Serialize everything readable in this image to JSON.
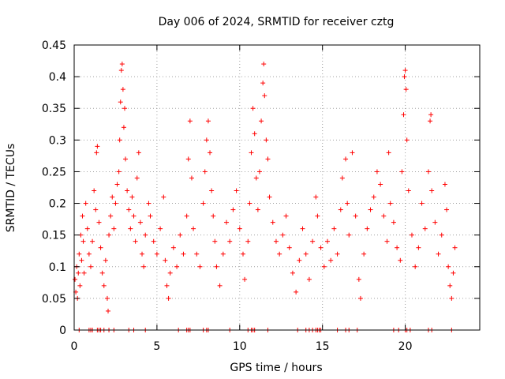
{
  "chart_data": {
    "type": "scatter",
    "title": "Day 006 of 2024, SRMTID for receiver cztg",
    "xlabel": "GPS time / hours",
    "ylabel": "SRMTID / TECUs",
    "xlim": [
      0,
      24.5
    ],
    "ylim": [
      0,
      0.45
    ],
    "x_ticks": [
      0,
      5,
      10,
      15,
      20
    ],
    "x_tick_labels": [
      "0",
      "5",
      "10",
      "15",
      "20"
    ],
    "y_ticks": [
      0,
      0.05,
      0.1,
      0.15,
      0.2,
      0.25,
      0.3,
      0.35,
      0.4,
      0.45
    ],
    "y_tick_labels": [
      "0",
      "0.05",
      "0.1",
      "0.15",
      "0.2",
      "0.25",
      "0.3",
      "0.35",
      "0.4",
      "0.45"
    ],
    "grid": true,
    "marker": "plus",
    "series_color": "#ff0000",
    "x_range_hours": [
      0,
      23
    ],
    "zero_value_hours": [
      0.3,
      0.9,
      1.0,
      1.1,
      1.4,
      1.5,
      1.6,
      1.8,
      2.1,
      2.4,
      3.3,
      3.6,
      4.3,
      6.3,
      6.8,
      6.9,
      7.0,
      7.8,
      8.0,
      8.1,
      9.4,
      10.5,
      10.7,
      10.8,
      10.9,
      11.7,
      13.5,
      14.0,
      14.2,
      14.4,
      14.6,
      14.7,
      14.8,
      14.9,
      15.9,
      16.4,
      16.6,
      17.1,
      19.3,
      19.6,
      20.0,
      20.1,
      20.3,
      21.4,
      21.6,
      22.8
    ],
    "points": [
      [
        0.05,
        0.08
      ],
      [
        0.1,
        0.06
      ],
      [
        0.15,
        0.1
      ],
      [
        0.2,
        0.05
      ],
      [
        0.25,
        0.09
      ],
      [
        0.3,
        0.12
      ],
      [
        0.35,
        0.07
      ],
      [
        0.4,
        0.15
      ],
      [
        0.45,
        0.11
      ],
      [
        0.5,
        0.18
      ],
      [
        0.55,
        0.14
      ],
      [
        0.6,
        0.09
      ],
      [
        0.7,
        0.2
      ],
      [
        0.8,
        0.16
      ],
      [
        0.9,
        0.12
      ],
      [
        1.0,
        0.1
      ],
      [
        1.1,
        0.14
      ],
      [
        1.2,
        0.22
      ],
      [
        1.3,
        0.19
      ],
      [
        1.35,
        0.28
      ],
      [
        1.4,
        0.29
      ],
      [
        1.5,
        0.17
      ],
      [
        1.6,
        0.13
      ],
      [
        1.7,
        0.09
      ],
      [
        1.8,
        0.07
      ],
      [
        1.9,
        0.11
      ],
      [
        2.0,
        0.05
      ],
      [
        2.05,
        0.03
      ],
      [
        2.1,
        0.15
      ],
      [
        2.2,
        0.18
      ],
      [
        2.3,
        0.21
      ],
      [
        2.4,
        0.16
      ],
      [
        2.5,
        0.2
      ],
      [
        2.6,
        0.23
      ],
      [
        2.7,
        0.25
      ],
      [
        2.75,
        0.3
      ],
      [
        2.8,
        0.36
      ],
      [
        2.85,
        0.41
      ],
      [
        2.9,
        0.42
      ],
      [
        2.95,
        0.38
      ],
      [
        3.0,
        0.32
      ],
      [
        3.05,
        0.35
      ],
      [
        3.1,
        0.27
      ],
      [
        3.2,
        0.22
      ],
      [
        3.3,
        0.19
      ],
      [
        3.4,
        0.16
      ],
      [
        3.5,
        0.21
      ],
      [
        3.6,
        0.18
      ],
      [
        3.7,
        0.14
      ],
      [
        3.8,
        0.24
      ],
      [
        3.9,
        0.28
      ],
      [
        4.0,
        0.17
      ],
      [
        4.1,
        0.12
      ],
      [
        4.2,
        0.1
      ],
      [
        4.3,
        0.15
      ],
      [
        4.5,
        0.2
      ],
      [
        4.6,
        0.18
      ],
      [
        4.8,
        0.14
      ],
      [
        5.0,
        0.12
      ],
      [
        5.2,
        0.16
      ],
      [
        5.4,
        0.21
      ],
      [
        5.5,
        0.11
      ],
      [
        5.6,
        0.07
      ],
      [
        5.7,
        0.05
      ],
      [
        5.8,
        0.09
      ],
      [
        6.0,
        0.13
      ],
      [
        6.2,
        0.1
      ],
      [
        6.4,
        0.15
      ],
      [
        6.6,
        0.12
      ],
      [
        6.8,
        0.18
      ],
      [
        6.9,
        0.27
      ],
      [
        7.0,
        0.33
      ],
      [
        7.1,
        0.24
      ],
      [
        7.2,
        0.16
      ],
      [
        7.4,
        0.12
      ],
      [
        7.6,
        0.1
      ],
      [
        7.8,
        0.2
      ],
      [
        7.9,
        0.25
      ],
      [
        8.0,
        0.3
      ],
      [
        8.1,
        0.33
      ],
      [
        8.2,
        0.28
      ],
      [
        8.3,
        0.22
      ],
      [
        8.4,
        0.18
      ],
      [
        8.5,
        0.14
      ],
      [
        8.6,
        0.1
      ],
      [
        8.8,
        0.07
      ],
      [
        9.0,
        0.12
      ],
      [
        9.2,
        0.17
      ],
      [
        9.4,
        0.14
      ],
      [
        9.6,
        0.19
      ],
      [
        9.8,
        0.22
      ],
      [
        10.0,
        0.16
      ],
      [
        10.2,
        0.12
      ],
      [
        10.3,
        0.08
      ],
      [
        10.5,
        0.14
      ],
      [
        10.6,
        0.2
      ],
      [
        10.7,
        0.28
      ],
      [
        10.8,
        0.35
      ],
      [
        10.9,
        0.31
      ],
      [
        11.0,
        0.24
      ],
      [
        11.1,
        0.19
      ],
      [
        11.2,
        0.25
      ],
      [
        11.3,
        0.33
      ],
      [
        11.4,
        0.39
      ],
      [
        11.45,
        0.42
      ],
      [
        11.5,
        0.37
      ],
      [
        11.6,
        0.3
      ],
      [
        11.7,
        0.27
      ],
      [
        11.8,
        0.21
      ],
      [
        12.0,
        0.17
      ],
      [
        12.2,
        0.14
      ],
      [
        12.4,
        0.12
      ],
      [
        12.6,
        0.15
      ],
      [
        12.8,
        0.18
      ],
      [
        13.0,
        0.13
      ],
      [
        13.2,
        0.09
      ],
      [
        13.4,
        0.06
      ],
      [
        13.6,
        0.11
      ],
      [
        13.8,
        0.16
      ],
      [
        14.0,
        0.12
      ],
      [
        14.2,
        0.08
      ],
      [
        14.4,
        0.14
      ],
      [
        14.6,
        0.21
      ],
      [
        14.7,
        0.18
      ],
      [
        14.9,
        0.13
      ],
      [
        15.1,
        0.1
      ],
      [
        15.3,
        0.14
      ],
      [
        15.5,
        0.11
      ],
      [
        15.7,
        0.16
      ],
      [
        15.9,
        0.12
      ],
      [
        16.1,
        0.19
      ],
      [
        16.2,
        0.24
      ],
      [
        16.4,
        0.27
      ],
      [
        16.5,
        0.2
      ],
      [
        16.6,
        0.15
      ],
      [
        16.8,
        0.28
      ],
      [
        17.0,
        0.18
      ],
      [
        17.2,
        0.08
      ],
      [
        17.3,
        0.05
      ],
      [
        17.5,
        0.12
      ],
      [
        17.7,
        0.16
      ],
      [
        17.9,
        0.19
      ],
      [
        18.1,
        0.21
      ],
      [
        18.3,
        0.25
      ],
      [
        18.5,
        0.23
      ],
      [
        18.7,
        0.18
      ],
      [
        18.9,
        0.14
      ],
      [
        19.0,
        0.28
      ],
      [
        19.1,
        0.2
      ],
      [
        19.3,
        0.17
      ],
      [
        19.5,
        0.13
      ],
      [
        19.7,
        0.11
      ],
      [
        19.8,
        0.25
      ],
      [
        19.9,
        0.34
      ],
      [
        19.95,
        0.4
      ],
      [
        20.0,
        0.41
      ],
      [
        20.05,
        0.38
      ],
      [
        20.1,
        0.3
      ],
      [
        20.2,
        0.22
      ],
      [
        20.4,
        0.15
      ],
      [
        20.6,
        0.1
      ],
      [
        20.8,
        0.13
      ],
      [
        21.0,
        0.2
      ],
      [
        21.2,
        0.16
      ],
      [
        21.4,
        0.25
      ],
      [
        21.5,
        0.33
      ],
      [
        21.55,
        0.34
      ],
      [
        21.6,
        0.22
      ],
      [
        21.8,
        0.17
      ],
      [
        22.0,
        0.12
      ],
      [
        22.2,
        0.15
      ],
      [
        22.4,
        0.23
      ],
      [
        22.5,
        0.19
      ],
      [
        22.6,
        0.1
      ],
      [
        22.7,
        0.07
      ],
      [
        22.8,
        0.05
      ],
      [
        22.9,
        0.09
      ],
      [
        23.0,
        0.13
      ]
    ]
  }
}
